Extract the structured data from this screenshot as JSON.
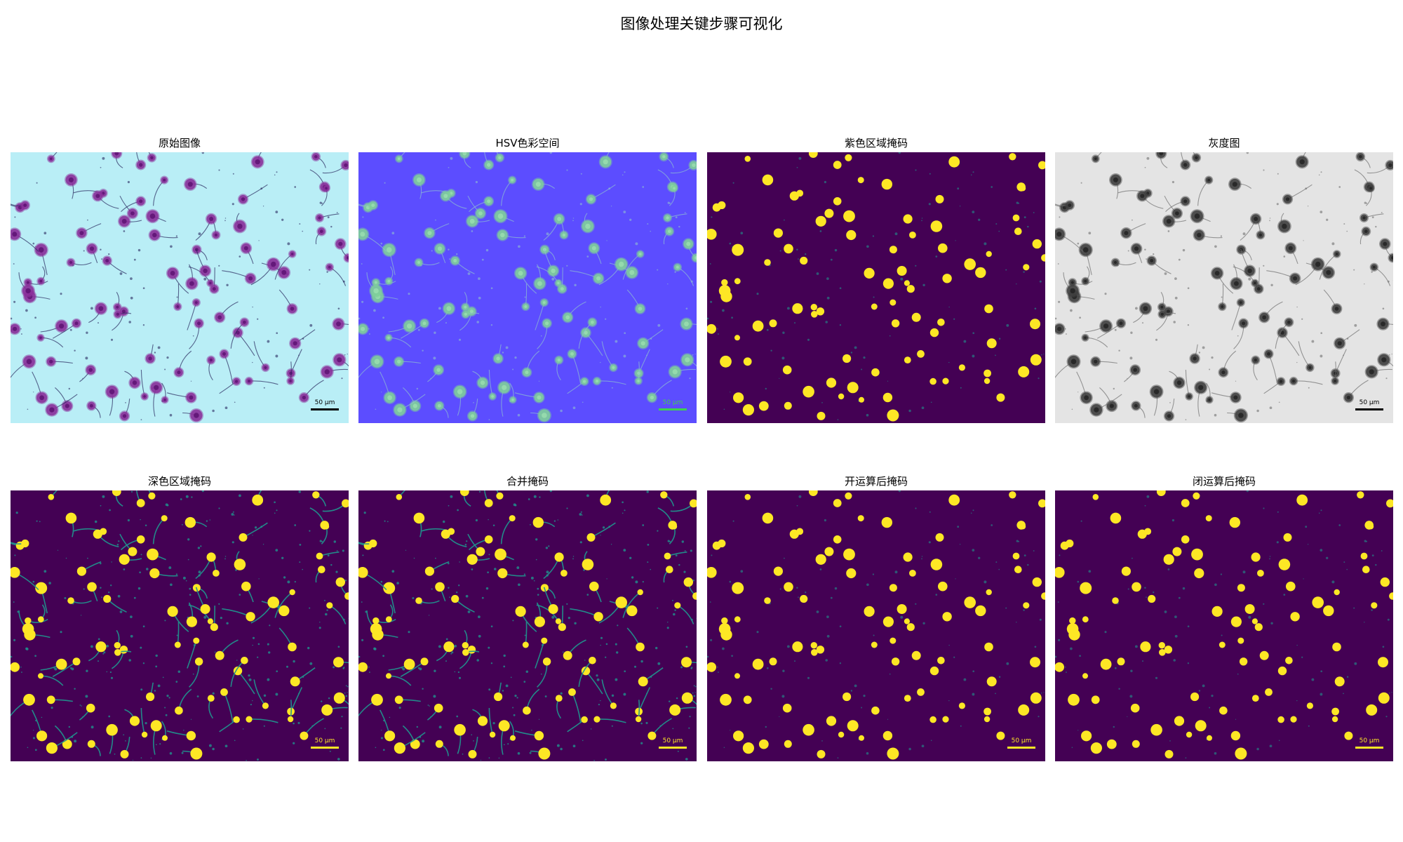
{
  "figure": {
    "title": "图像处理关键步骤可视化"
  },
  "panels": [
    {
      "title": "原始图像",
      "style": "original",
      "bg": "#b9eef6",
      "blob": "#8a2f9a",
      "blob_core": "#5a1070",
      "line": "#2a2a60",
      "scale_color": "#000000"
    },
    {
      "title": "HSV色彩空间",
      "style": "hsv",
      "bg": "#5c4dff",
      "blob": "#7fcf9a",
      "blob_core": "#9be0b0",
      "line": "#8fbfd0",
      "scale_color": "#3fd050"
    },
    {
      "title": "紫色区域掩码",
      "style": "mask",
      "bg": "#440154",
      "blob": "#fde725",
      "blob_core": "#fde725",
      "line": "#21918c",
      "scale_color": "#fde725"
    },
    {
      "title": "灰度图",
      "style": "gray",
      "bg": "#e4e4e4",
      "blob": "#404040",
      "blob_core": "#202020",
      "line": "#707070",
      "scale_color": "#000000"
    },
    {
      "title": "深色区域掩码",
      "style": "dark",
      "bg": "#440154",
      "blob": "#fde725",
      "blob_core": "#fde725",
      "line": "#21918c",
      "scale_color": "#fde725"
    },
    {
      "title": "合并掩码",
      "style": "dark",
      "bg": "#440154",
      "blob": "#fde725",
      "blob_core": "#fde725",
      "line": "#21918c",
      "scale_color": "#fde725"
    },
    {
      "title": "开运算后掩码",
      "style": "mask",
      "bg": "#440154",
      "blob": "#fde725",
      "blob_core": "#fde725",
      "line": "#21918c",
      "scale_color": "#fde725"
    },
    {
      "title": "闭运算后掩码",
      "style": "mask",
      "bg": "#440154",
      "blob": "#fde725",
      "blob_core": "#fde725",
      "line": "#21918c",
      "scale_color": "#fde725"
    }
  ],
  "scale_bar_label": "50 µm"
}
